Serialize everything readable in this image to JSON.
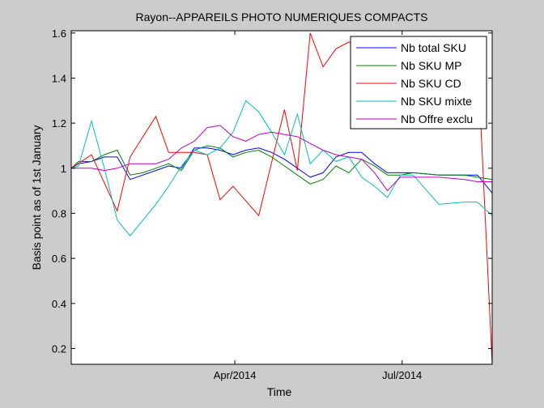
{
  "chart_data": {
    "type": "line",
    "title": "Rayon--APPAREILS PHOTO NUMERIQUES COMPACTS",
    "xlabel": "Time",
    "ylabel": "Basis point as of 1st January",
    "xlim": [
      "2014-01-02",
      "2014-08-19"
    ],
    "ylim": [
      0.13,
      1.61
    ],
    "yticks": [
      0.2,
      0.4,
      0.6,
      0.8,
      1,
      1.2,
      1.4,
      1.6
    ],
    "ytick_labels": [
      "0.2",
      "0.4",
      "0.6",
      "0.8",
      "1",
      "1.2",
      "1.4",
      "1.6"
    ],
    "xticks": [
      "2014-04-01",
      "2014-07-01"
    ],
    "xtick_labels": [
      "Apr/2014",
      "Jul/2014"
    ],
    "grid": false,
    "legend_position": "top-right",
    "series": [
      {
        "name": "Nb total SKU",
        "color": "#0000ff",
        "x": [
          "2014-01-02",
          "2014-01-06",
          "2014-01-13",
          "2014-01-20",
          "2014-01-27",
          "2014-02-03",
          "2014-02-10",
          "2014-02-17",
          "2014-02-24",
          "2014-03-03",
          "2014-03-10",
          "2014-03-17",
          "2014-03-24",
          "2014-03-31",
          "2014-04-07",
          "2014-04-14",
          "2014-04-21",
          "2014-04-28",
          "2014-05-05",
          "2014-05-12",
          "2014-05-19",
          "2014-05-26",
          "2014-06-02",
          "2014-06-09",
          "2014-06-16",
          "2014-06-23",
          "2014-06-30",
          "2014-07-07",
          "2014-07-21",
          "2014-08-04",
          "2014-08-11",
          "2014-08-19"
        ],
        "values": [
          1.0,
          1.02,
          1.03,
          1.05,
          1.05,
          0.95,
          0.97,
          0.99,
          1.01,
          1.0,
          1.09,
          1.09,
          1.08,
          1.06,
          1.08,
          1.09,
          1.07,
          1.04,
          1.0,
          0.96,
          0.98,
          1.05,
          1.07,
          1.07,
          1.02,
          0.98,
          0.98,
          0.98,
          0.97,
          0.97,
          0.97,
          0.89
        ]
      },
      {
        "name": "Nb SKU MP",
        "color": "#007f00",
        "x": [
          "2014-01-02",
          "2014-01-06",
          "2014-01-13",
          "2014-01-20",
          "2014-01-27",
          "2014-02-03",
          "2014-02-10",
          "2014-02-17",
          "2014-02-24",
          "2014-03-03",
          "2014-03-10",
          "2014-03-17",
          "2014-03-24",
          "2014-03-31",
          "2014-04-07",
          "2014-04-14",
          "2014-04-21",
          "2014-04-28",
          "2014-05-05",
          "2014-05-12",
          "2014-05-19",
          "2014-05-26",
          "2014-06-02",
          "2014-06-09",
          "2014-06-16",
          "2014-06-23",
          "2014-06-30",
          "2014-07-07",
          "2014-07-21",
          "2014-08-04",
          "2014-08-11",
          "2014-08-19"
        ],
        "values": [
          1.0,
          1.03,
          1.03,
          1.06,
          1.08,
          0.97,
          0.98,
          1.0,
          1.02,
          0.99,
          1.08,
          1.1,
          1.09,
          1.05,
          1.07,
          1.08,
          1.05,
          1.01,
          0.97,
          0.93,
          0.95,
          1.01,
          0.98,
          1.04,
          1.01,
          0.97,
          0.97,
          0.98,
          0.97,
          0.97,
          0.96,
          0.95
        ]
      },
      {
        "name": "Nb SKU CD",
        "color": "#ff0000",
        "x": [
          "2014-01-02",
          "2014-01-13",
          "2014-01-27",
          "2014-02-03",
          "2014-02-17",
          "2014-02-24",
          "2014-03-03",
          "2014-03-10",
          "2014-03-17",
          "2014-03-24",
          "2014-03-31",
          "2014-04-14",
          "2014-04-28",
          "2014-05-05",
          "2014-05-12",
          "2014-05-19",
          "2014-05-26",
          "2014-06-02",
          "2014-06-09",
          "2014-06-16",
          "2014-06-23",
          "2014-07-01",
          "2014-07-14",
          "2014-07-28",
          "2014-08-04",
          "2014-08-11",
          "2014-08-19"
        ],
        "values": [
          1.0,
          1.06,
          0.81,
          1.05,
          1.23,
          1.07,
          1.07,
          1.07,
          1.06,
          0.86,
          0.92,
          0.79,
          1.26,
          0.99,
          1.6,
          1.45,
          1.53,
          1.56,
          1.54,
          1.52,
          1.52,
          1.51,
          1.51,
          1.51,
          1.51,
          1.51,
          0.13
        ]
      },
      {
        "name": "Nb SKU mixte",
        "color": "#00bfbf",
        "x": [
          "2014-01-02",
          "2014-01-06",
          "2014-01-13",
          "2014-01-20",
          "2014-01-27",
          "2014-02-03",
          "2014-02-10",
          "2014-02-17",
          "2014-02-24",
          "2014-03-03",
          "2014-03-10",
          "2014-03-17",
          "2014-03-24",
          "2014-03-31",
          "2014-04-07",
          "2014-04-14",
          "2014-04-21",
          "2014-04-28",
          "2014-05-05",
          "2014-05-12",
          "2014-05-19",
          "2014-05-26",
          "2014-06-02",
          "2014-06-09",
          "2014-06-16",
          "2014-06-23",
          "2014-06-30",
          "2014-07-07",
          "2014-07-21",
          "2014-08-04",
          "2014-08-11",
          "2014-08-19"
        ],
        "values": [
          1.0,
          1.01,
          1.21,
          1.0,
          0.77,
          0.7,
          0.77,
          0.84,
          0.92,
          1.01,
          1.08,
          1.06,
          1.09,
          1.16,
          1.3,
          1.25,
          1.16,
          1.06,
          1.24,
          1.02,
          1.08,
          1.03,
          1.05,
          0.96,
          0.92,
          0.87,
          0.97,
          0.97,
          0.84,
          0.85,
          0.85,
          0.79
        ]
      },
      {
        "name": "Nb Offre exclu",
        "color": "#bf00bf",
        "x": [
          "2014-01-02",
          "2014-01-06",
          "2014-01-13",
          "2014-01-20",
          "2014-01-27",
          "2014-02-03",
          "2014-02-10",
          "2014-02-17",
          "2014-02-24",
          "2014-03-03",
          "2014-03-10",
          "2014-03-17",
          "2014-03-24",
          "2014-03-31",
          "2014-04-07",
          "2014-04-14",
          "2014-04-21",
          "2014-04-28",
          "2014-05-05",
          "2014-05-12",
          "2014-05-19",
          "2014-05-26",
          "2014-06-02",
          "2014-06-09",
          "2014-06-16",
          "2014-06-23",
          "2014-06-30",
          "2014-07-07",
          "2014-07-21",
          "2014-08-04",
          "2014-08-11",
          "2014-08-19"
        ],
        "values": [
          1.0,
          1.0,
          1.0,
          0.99,
          1.0,
          1.02,
          1.02,
          1.02,
          1.04,
          1.09,
          1.12,
          1.18,
          1.19,
          1.14,
          1.12,
          1.15,
          1.16,
          1.15,
          1.14,
          1.11,
          1.08,
          1.06,
          1.05,
          1.04,
          0.98,
          0.9,
          0.96,
          0.96,
          0.96,
          0.95,
          0.94,
          0.94
        ]
      }
    ]
  }
}
